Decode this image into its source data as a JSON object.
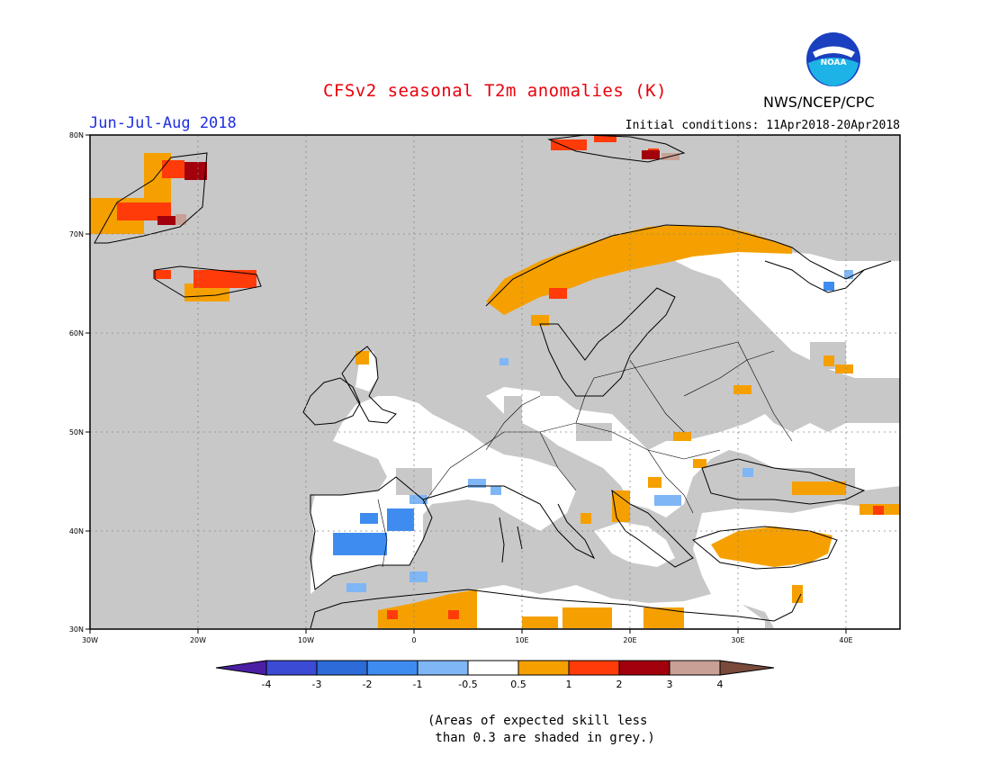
{
  "header": {
    "title": "CFSv2 seasonal T2m anomalies (K)",
    "agency": "NWS/NCEP/CPC",
    "logo_text": "NOAA",
    "season": "Jun-Jul-Aug 2018",
    "initial_conditions": "Initial conditions: 11Apr2018-20Apr2018"
  },
  "axes": {
    "lat_labels": [
      "80N",
      "70N",
      "60N",
      "50N",
      "40N",
      "30N"
    ],
    "lon_labels": [
      "30W",
      "20W",
      "10W",
      "0",
      "10E",
      "20E",
      "30E",
      "40E"
    ]
  },
  "colorbar": {
    "labels": [
      "-4",
      "-3",
      "-2",
      "-1",
      "-0.5",
      "0.5",
      "1",
      "2",
      "3",
      "4"
    ],
    "colors": [
      "#4b1fa3",
      "#3c4bd4",
      "#2d6bd8",
      "#3f8cf0",
      "#7fb6f5",
      "#ffffff",
      "#f5a000",
      "#ff3b0a",
      "#a1000c",
      "#c9a095",
      "#7a4a3a"
    ]
  },
  "note": "(Areas of expected skill less\n than 0.3 are shaded in grey.)",
  "colors": {
    "ocean_grey": "#c8c8c8",
    "orange": "#f5a000",
    "red": "#ff3b0a",
    "darkred": "#a1000c",
    "lightblue": "#7fb6f5",
    "blue": "#3f8cf0",
    "rose": "#c9a095"
  }
}
